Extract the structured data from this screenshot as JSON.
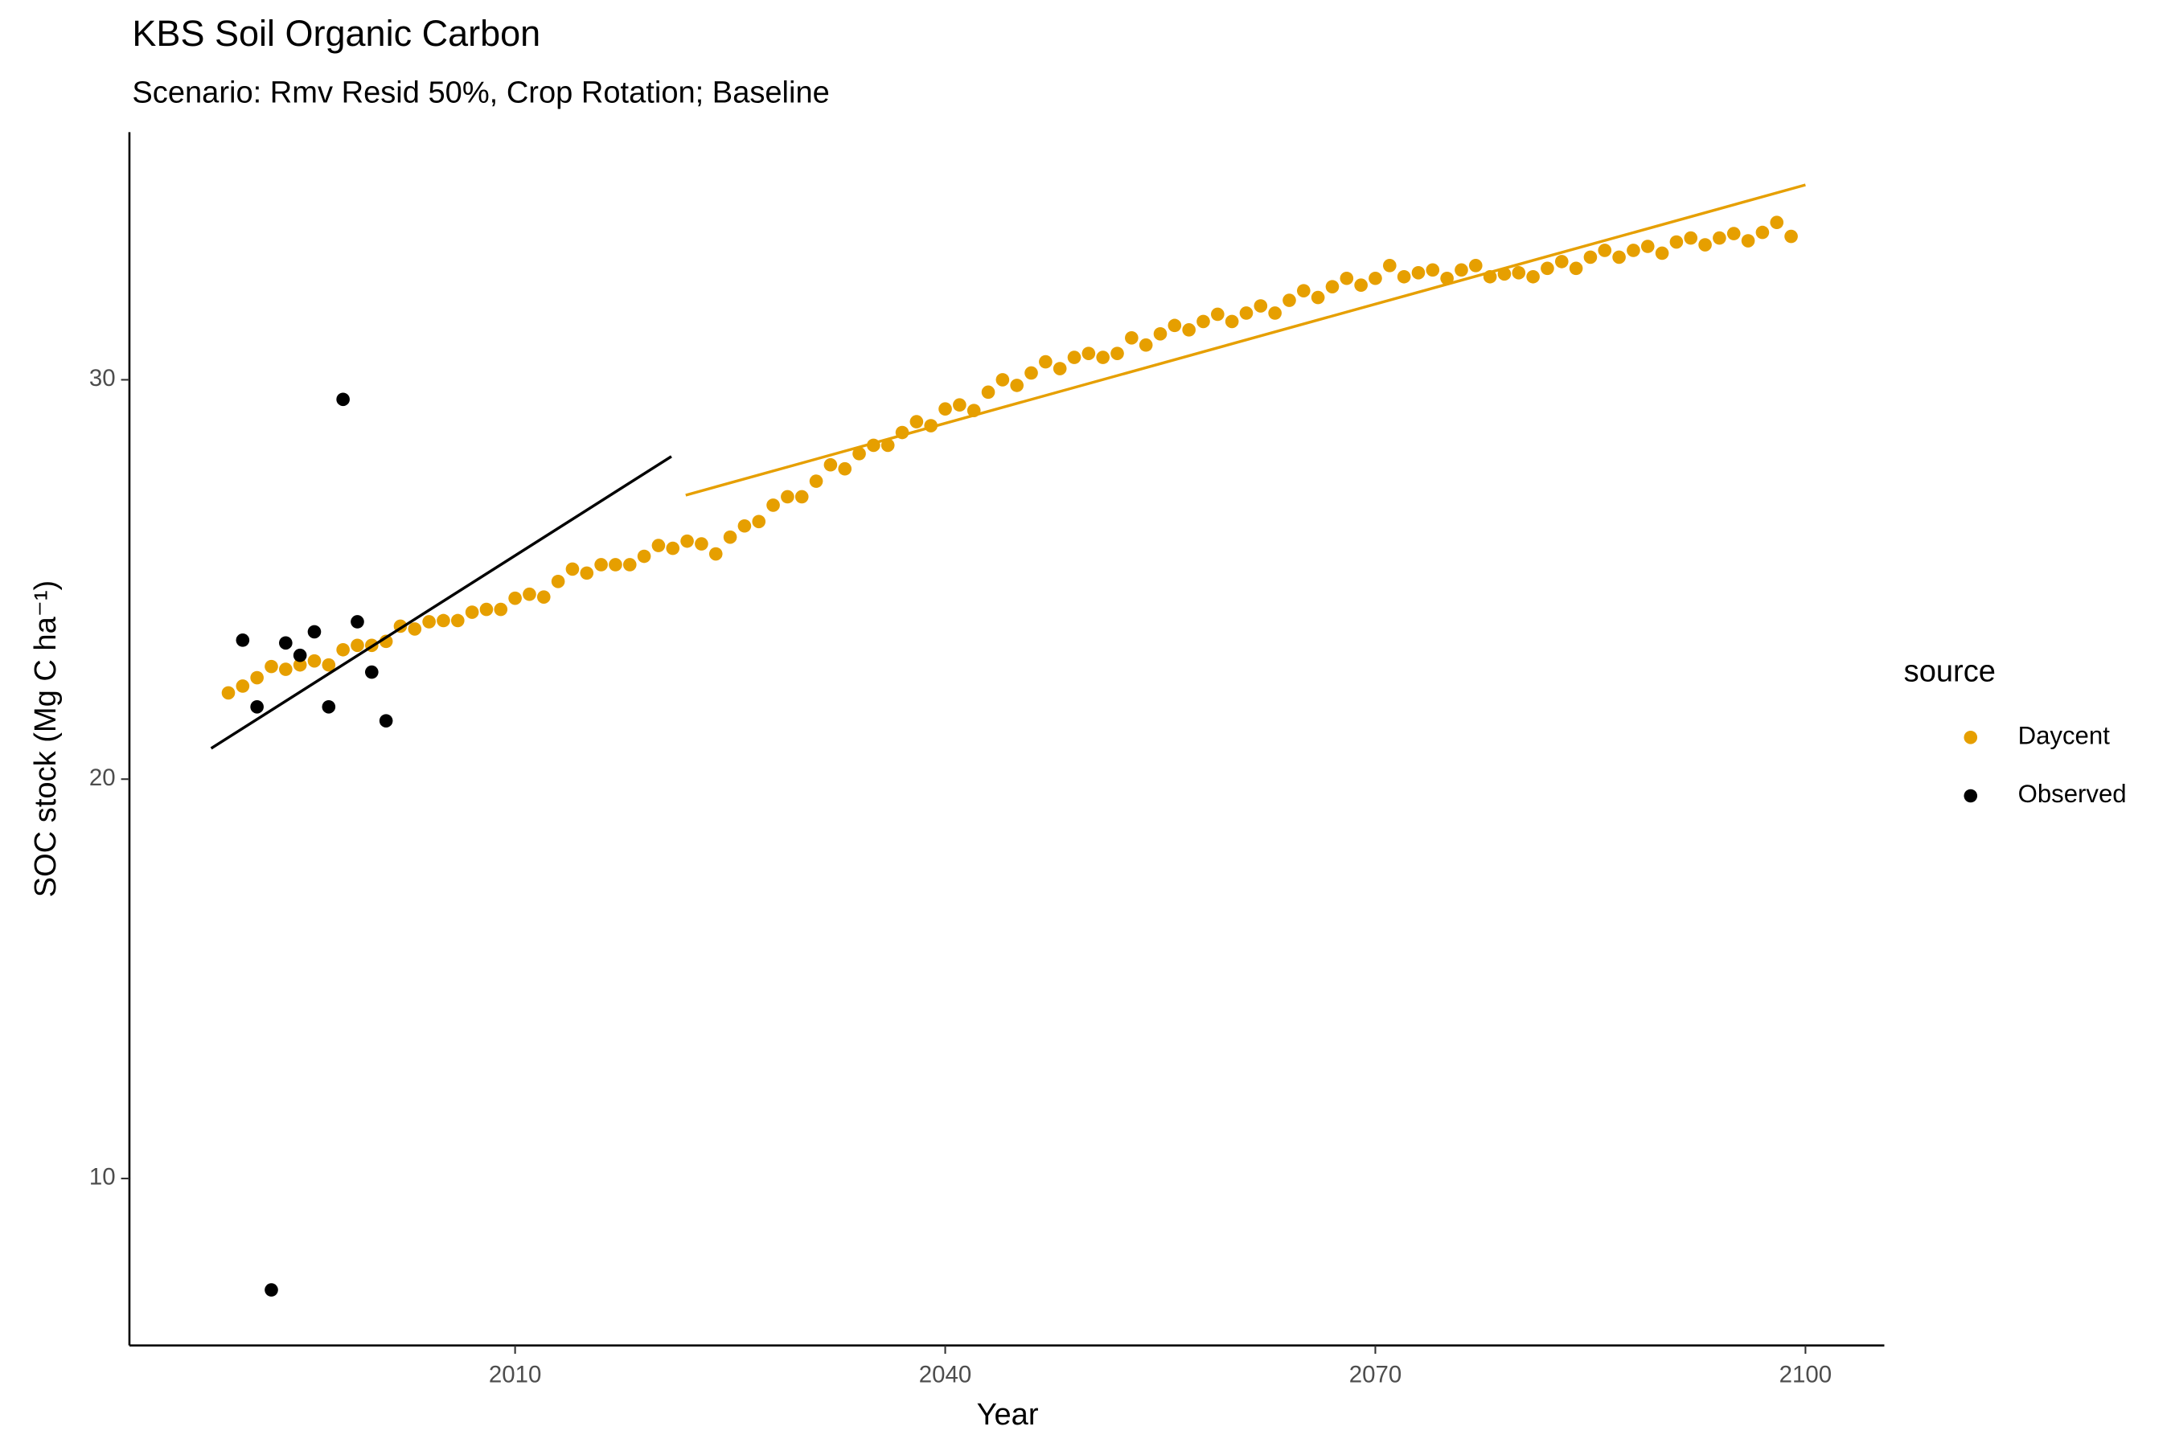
{
  "chart_data": {
    "type": "scatter",
    "title": "KBS Soil Organic Carbon",
    "subtitle": "Scenario: Rmv Resid 50%, Crop Rotation; Baseline",
    "x_label": "Year",
    "y_label": "SOC stock (Mg C ha⁻¹)",
    "legend_title": "source",
    "legend_position": "right",
    "grid": false,
    "xlim": [
      1983.1,
      2105.5
    ],
    "ylim": [
      5.82,
      36.2
    ],
    "xticks": [
      2010,
      2040,
      2070,
      2100
    ],
    "yticks": [
      10,
      20,
      30
    ],
    "series": [
      {
        "name": "Daycent",
        "color": "#E69F00",
        "x": [
          1990,
          1991,
          1992,
          1993,
          1994,
          1995,
          1996,
          1997,
          1998,
          1999,
          2000,
          2001,
          2002,
          2003,
          2004,
          2005,
          2006,
          2007,
          2008,
          2009,
          2010,
          2011,
          2012,
          2013,
          2014,
          2015,
          2016,
          2017,
          2018,
          2019,
          2020,
          2021,
          2022,
          2023,
          2024,
          2025,
          2026,
          2027,
          2028,
          2029,
          2030,
          2031,
          2032,
          2033,
          2034,
          2035,
          2036,
          2037,
          2038,
          2039,
          2040,
          2041,
          2042,
          2043,
          2044,
          2045,
          2046,
          2047,
          2048,
          2049,
          2050,
          2051,
          2052,
          2053,
          2054,
          2055,
          2056,
          2057,
          2058,
          2059,
          2060,
          2061,
          2062,
          2063,
          2064,
          2065,
          2066,
          2067,
          2068,
          2069,
          2070,
          2071,
          2072,
          2073,
          2074,
          2075,
          2076,
          2077,
          2078,
          2079,
          2080,
          2081,
          2082,
          2083,
          2084,
          2085,
          2086,
          2087,
          2088,
          2089,
          2090,
          2091,
          2092,
          2093,
          2094,
          2095,
          2096,
          2097,
          2098,
          2099
        ],
        "values": [
          22.16,
          22.33,
          22.54,
          22.82,
          22.75,
          22.86,
          22.96,
          22.86,
          23.24,
          23.35,
          23.35,
          23.45,
          23.83,
          23.76,
          23.94,
          23.97,
          23.97,
          24.18,
          24.25,
          24.25,
          24.53,
          24.63,
          24.56,
          24.95,
          25.26,
          25.16,
          25.37,
          25.37,
          25.37,
          25.58,
          25.85,
          25.78,
          25.96,
          25.89,
          25.64,
          26.06,
          26.34,
          26.45,
          26.86,
          27.07,
          27.07,
          27.46,
          27.87,
          27.77,
          28.15,
          28.36,
          28.36,
          28.68,
          28.95,
          28.85,
          29.27,
          29.37,
          29.23,
          29.69,
          30.0,
          29.86,
          30.17,
          30.45,
          30.28,
          30.56,
          30.66,
          30.56,
          30.66,
          31.05,
          30.87,
          31.15,
          31.36,
          31.25,
          31.46,
          31.64,
          31.46,
          31.67,
          31.85,
          31.67,
          31.99,
          32.23,
          32.06,
          32.33,
          32.54,
          32.37,
          32.54,
          32.86,
          32.58,
          32.68,
          32.75,
          32.54,
          32.75,
          32.86,
          32.58,
          32.65,
          32.68,
          32.58,
          32.79,
          32.96,
          32.79,
          33.07,
          33.24,
          33.07,
          33.24,
          33.34,
          33.17,
          33.45,
          33.55,
          33.38,
          33.55,
          33.66,
          33.48,
          33.69,
          33.94,
          33.59
        ],
        "fit": {
          "x": [
            2021.9,
            2100
          ],
          "values": [
            27.11,
            34.88
          ]
        }
      },
      {
        "name": "Observed",
        "color": "#000000",
        "x": [
          1991,
          1992,
          1993,
          1994,
          1995,
          1996,
          1997,
          1998,
          1999,
          2000,
          2001
        ],
        "values": [
          23.48,
          21.81,
          7.21,
          23.41,
          23.1,
          23.69,
          21.81,
          29.51,
          23.94,
          22.68,
          21.46
        ],
        "fit": {
          "x": [
            1988.8,
            2020.9
          ],
          "values": [
            20.77,
            28.08
          ]
        }
      }
    ]
  }
}
